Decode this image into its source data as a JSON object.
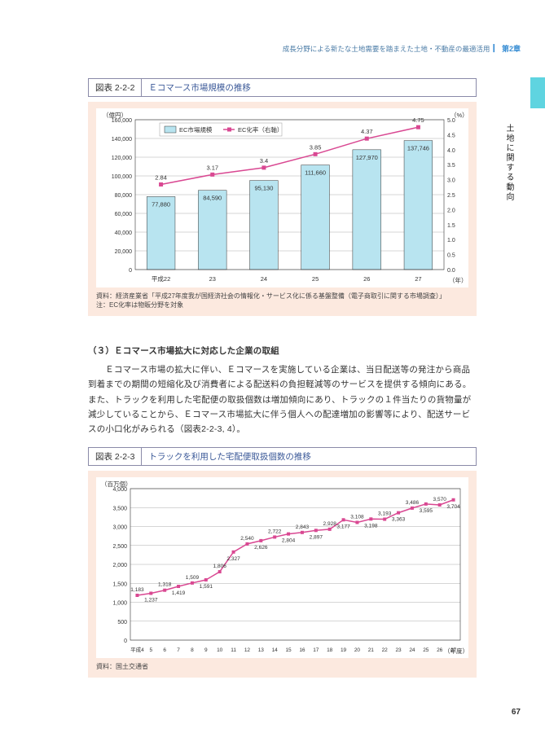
{
  "header": {
    "text": "成長分野による新たな土地需要を踏まえた土地・不動産の最適活用",
    "chapter": "第2章"
  },
  "side_label": "土地に関する動向",
  "page_number": "67",
  "figure1": {
    "number": "図表 2-2-2",
    "title": "Ｅコマース市場規模の推移",
    "y_left_unit": "（億円）",
    "y_right_unit": "（%）",
    "x_unit": "（年）",
    "legend_bar": "EC市場規模",
    "legend_line": "EC化率（右軸）",
    "y_left": {
      "min": 0,
      "max": 160000,
      "step": 20000,
      "ticks": [
        "0",
        "20,000",
        "40,000",
        "60,000",
        "80,000",
        "100,000",
        "120,000",
        "140,000",
        "160,000"
      ]
    },
    "y_right": {
      "min": 0,
      "max": 5.0,
      "step": 0.5,
      "ticks": [
        "0.0",
        "0.5",
        "1.0",
        "1.5",
        "2.0",
        "2.5",
        "3.0",
        "3.5",
        "4.0",
        "4.5",
        "5.0"
      ]
    },
    "categories": [
      "平成22",
      "23",
      "24",
      "25",
      "26",
      "27"
    ],
    "bar_values": [
      77880,
      84590,
      95130,
      111660,
      127970,
      137746
    ],
    "bar_labels": [
      "77,880",
      "84,590",
      "95,130",
      "111,660",
      "127,970",
      "137,746"
    ],
    "line_values": [
      2.84,
      3.17,
      3.4,
      3.85,
      4.37,
      4.75
    ],
    "line_labels": [
      "2.84",
      "3.17",
      "3.4",
      "3.85",
      "4.37",
      "4.75"
    ],
    "bar_fill": "#b8e4f0",
    "bar_stroke": "#333",
    "line_color": "#d94892",
    "marker_color": "#d94892",
    "grid_color": "#999",
    "bg": "#ffffff",
    "source": "資料：経済産業省「平成27年度我が国経済社会の情報化・サービス化に係る基盤整備（電子商取引に関する市場調査）」",
    "note": "注：EC化率は物販分野を対象"
  },
  "body": {
    "heading": "（３）Ｅコマース市場拡大に対応した企業の取組",
    "para": "　Ｅコマース市場の拡大に伴い、Ｅコマースを実施している企業は、当日配送等の発注から商品到着までの期間の短縮化及び消費者による配送料の負担軽減等のサービスを提供する傾向にある。また、トラックを利用した宅配便の取扱個数は増加傾向にあり、トラックの１件当たりの貨物量が減少していることから、Ｅコマース市場拡大に伴う個人への配達増加の影響等により、配送サービスの小口化がみられる（図表2-2-3, 4）。"
  },
  "figure2": {
    "number": "図表 2-2-3",
    "title": "トラックを利用した宅配便取扱個数の推移",
    "y_unit": "（百万個）",
    "x_unit": "（年度）",
    "y": {
      "min": 0,
      "max": 4000,
      "step": 500,
      "ticks": [
        "0",
        "500",
        "1,000",
        "1,500",
        "2,000",
        "2,500",
        "3,000",
        "3,500",
        "4,000"
      ]
    },
    "x_labels": [
      "平成4",
      "5",
      "6",
      "7",
      "8",
      "9",
      "10",
      "11",
      "12",
      "13",
      "14",
      "15",
      "16",
      "17",
      "18",
      "19",
      "20",
      "21",
      "22",
      "23",
      "24",
      "25",
      "26",
      "27"
    ],
    "values": [
      1183,
      1237,
      1318,
      1419,
      1509,
      1591,
      1806,
      2327,
      2540,
      2626,
      2722,
      2804,
      2843,
      2897,
      2928,
      3177,
      3108,
      3198,
      3193,
      3363,
      3486,
      3595,
      3570,
      3704
    ],
    "value_labels": [
      "1,183",
      "1,237",
      "1,318",
      "1,419",
      "1,509",
      "1,591",
      "1,806",
      "2,327",
      "2,540",
      "2,626",
      "2,722",
      "2,804",
      "2,843",
      "2,897",
      "2,928",
      "3,177",
      "3,108",
      "3,198",
      "3,193",
      "3,363",
      "3,486",
      "3,595",
      "3,570",
      "3,704"
    ],
    "line_color": "#d94892",
    "marker_color": "#d94892",
    "grid_color": "#999",
    "bg": "#ffffff",
    "source": "資料：国土交通省"
  }
}
